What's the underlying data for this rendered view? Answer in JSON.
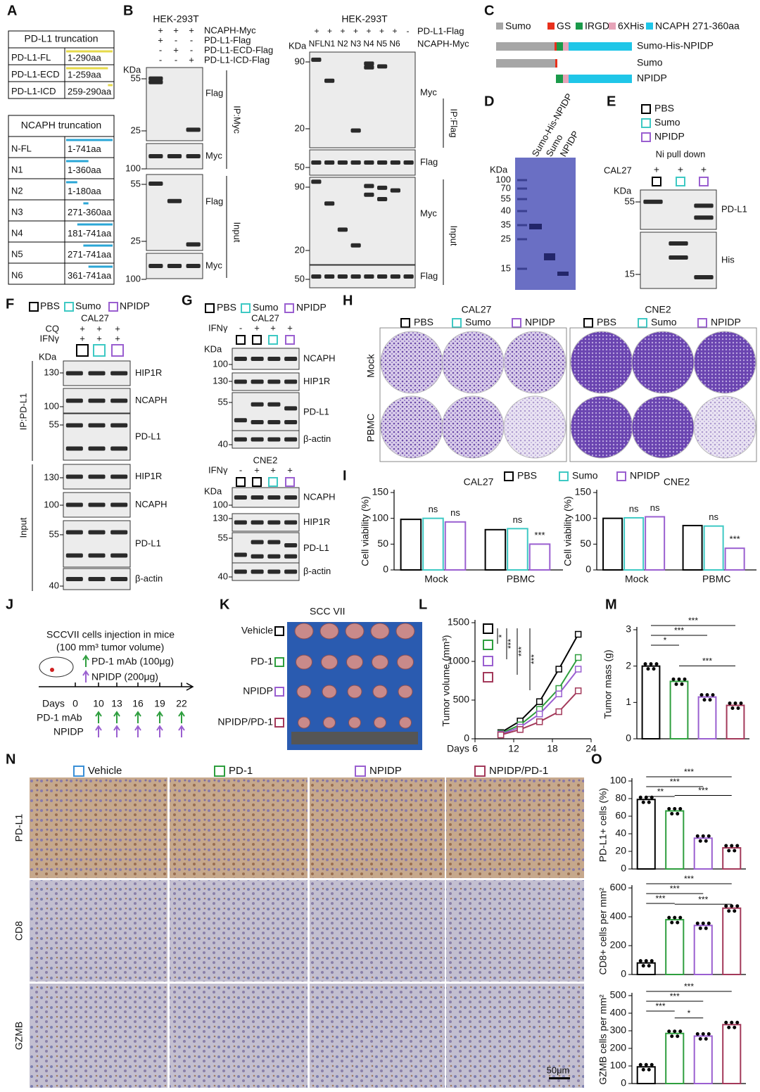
{
  "panels": {
    "A": {
      "label": "A",
      "pdl1": {
        "title": "PD-L1 truncation",
        "rows": [
          [
            "PD-L1-FL",
            "1-290aa"
          ],
          [
            "PD-L1-ECD",
            "1-259aa"
          ],
          [
            "PD-L1-ICD",
            "259-290aa"
          ]
        ]
      },
      "ncaph": {
        "title": "NCAPH truncation",
        "rows": [
          [
            "N-FL",
            "1-741aa"
          ],
          [
            "N1",
            "1-360aa"
          ],
          [
            "N2",
            "1-180aa"
          ],
          [
            "N3",
            "271-360aa"
          ],
          [
            "N4",
            "181-741aa"
          ],
          [
            "N5",
            "271-741aa"
          ],
          [
            "N6",
            "361-741aa"
          ]
        ]
      }
    },
    "B": {
      "label": "B",
      "left": {
        "cell": "HEK-293T",
        "conditions": [
          {
            "name": "NCAPH-Myc",
            "signs": [
              "+",
              "+",
              "+"
            ]
          },
          {
            "name": "PD-L1-Flag",
            "signs": [
              "+",
              "-",
              "-"
            ]
          },
          {
            "name": "PD-L1-ECD-Flag",
            "signs": [
              "-",
              "+",
              "-"
            ]
          },
          {
            "name": "PD-L1-ICD-Flag",
            "signs": [
              "-",
              "-",
              "+"
            ]
          }
        ],
        "kda": "KDa",
        "markers": [
          55,
          25,
          100,
          55,
          25,
          100
        ],
        "blots": [
          "Flag",
          "Myc",
          "Flag",
          "Myc"
        ],
        "groups": [
          "IP:Myc",
          "Input"
        ]
      },
      "right": {
        "cell": "HEK-293T",
        "conditions": [
          {
            "name": "PD-L1-Flag",
            "signs": [
              "+",
              "+",
              "+",
              "+",
              "+",
              "+",
              "+",
              "-"
            ]
          },
          {
            "name": "NCAPH-Myc",
            "signs": [
              "NFL",
              "N1",
              "N2",
              "N3",
              "N4",
              "N5",
              "N6"
            ]
          }
        ],
        "kda": "KDa",
        "markers": [
          90,
          20,
          50,
          90,
          20,
          50
        ],
        "blots": [
          "Myc",
          "Flag",
          "Myc",
          "Flag"
        ],
        "groups": [
          "IP:Flag",
          "Input"
        ]
      }
    },
    "C": {
      "label": "C",
      "legend": [
        {
          "name": "Sumo",
          "color": "#a6a6a6"
        },
        {
          "name": "GS",
          "color": "#e8301c"
        },
        {
          "name": "IRGD",
          "color": "#1a9a4a"
        },
        {
          "name": "6XHis",
          "color": "#e6a3b8"
        },
        {
          "name": "NCAPH 271-360aa",
          "color": "#1fc6e8"
        }
      ],
      "constructs": [
        "Sumo-His-NPIDP",
        "Sumo",
        "NPIDP"
      ]
    },
    "D": {
      "label": "D",
      "kda": "KDa",
      "markers": [
        100,
        70,
        55,
        40,
        35,
        25,
        15
      ],
      "lanes": [
        "Sumo-His-NPIDP",
        "Sumo",
        "NPIDP"
      ]
    },
    "E": {
      "label": "E",
      "legend": [
        {
          "name": "PBS",
          "color": "#000000"
        },
        {
          "name": "Sumo",
          "color": "#3ec9c4"
        },
        {
          "name": "NPIDP",
          "color": "#9a5fd0"
        }
      ],
      "pulldown": "Ni pull down",
      "cell": "CAL27",
      "signs": [
        "+",
        "+",
        "+"
      ],
      "kda": "KDa",
      "markers": [
        55,
        15
      ],
      "blots": [
        "PD-L1",
        "His"
      ]
    },
    "F": {
      "label": "F",
      "legend": [
        {
          "name": "PBS",
          "color": "#000000"
        },
        {
          "name": "Sumo",
          "color": "#3ec9c4"
        },
        {
          "name": "NPIDP",
          "color": "#9a5fd0"
        }
      ],
      "cell": "CAL27",
      "conditions": [
        {
          "name": "CQ",
          "signs": [
            "+",
            "+",
            "+"
          ]
        },
        {
          "name": "IFNγ",
          "signs": [
            "+",
            "+",
            "+"
          ]
        }
      ],
      "kda": "KDa",
      "markers": [
        130,
        100,
        55,
        130,
        100,
        55,
        40
      ],
      "blots": [
        "HIP1R",
        "NCAPH",
        "PD-L1",
        "HIP1R",
        "NCAPH",
        "PD-L1",
        "β-actin"
      ],
      "groups": [
        "IP:PD-L1",
        "Input"
      ]
    },
    "G": {
      "label": "G",
      "legend": [
        {
          "name": "PBS",
          "color": "#000000"
        },
        {
          "name": "Sumo",
          "color": "#3ec9c4"
        },
        {
          "name": "NPIDP",
          "color": "#9a5fd0"
        }
      ],
      "sets": [
        {
          "cell": "CAL27",
          "condition": "IFNγ",
          "signs": [
            "-",
            "+",
            "+",
            "+"
          ],
          "kda": "KDa",
          "markers": [
            100,
            130,
            55,
            40
          ],
          "blots": [
            "NCAPH",
            "HIP1R",
            "PD-L1",
            "β-actin"
          ]
        },
        {
          "cell": "CNE2",
          "condition": "IFNγ",
          "signs": [
            "-",
            "+",
            "+",
            "+"
          ],
          "kda": "KDa",
          "markers": [
            100,
            130,
            55,
            40
          ],
          "blots": [
            "NCAPH",
            "HIP1R",
            "PD-L1",
            "β-actin"
          ]
        }
      ]
    },
    "H": {
      "label": "H",
      "legend": [
        {
          "name": "PBS",
          "color": "#000000"
        },
        {
          "name": "Sumo",
          "color": "#3ec9c4"
        },
        {
          "name": "NPIDP",
          "color": "#9a5fd0"
        }
      ],
      "cells": [
        "CAL27",
        "CNE2"
      ],
      "rows": [
        "Mock",
        "PBMC"
      ]
    },
    "I": {
      "label": "I"
    },
    "J": {
      "label": "J",
      "title": "SCCVII cells injection in mice",
      "volume": "(100 mm³ tumor volume)",
      "pd1": "PD-1 mAb (100μg)",
      "npidp": "NPIDP (200μg)",
      "days_label": "Days",
      "days": [
        0,
        10,
        13,
        16,
        19,
        22
      ],
      "rows": [
        "PD-1 mAb",
        "NPIDP"
      ]
    },
    "K": {
      "label": "K",
      "title": "SCC VII",
      "groups": [
        {
          "name": "Vehicle",
          "color": "#000000"
        },
        {
          "name": "PD-1",
          "color": "#2e9e3e"
        },
        {
          "name": "NPIDP",
          "color": "#9a5fd0"
        },
        {
          "name": "NPIDP/PD-1",
          "color": "#a3395a"
        }
      ]
    },
    "L": {
      "label": "L"
    },
    "M": {
      "label": "M"
    },
    "N": {
      "label": "N",
      "legend": [
        {
          "name": "Vehicle",
          "color": "#3a8fd6"
        },
        {
          "name": "PD-1",
          "color": "#2e9e3e"
        },
        {
          "name": "NPIDP",
          "color": "#9a5fd0"
        },
        {
          "name": "NPIDP/PD-1",
          "color": "#a3395a"
        }
      ],
      "rows": [
        "PD-L1",
        "CD8",
        "GZMB"
      ],
      "scale": "50μm"
    },
    "O": {
      "label": "O"
    }
  },
  "chart_data": [
    {
      "type": "grouped_bar",
      "title": "CAL27",
      "ylabel": "Cell viability (%)",
      "categories": [
        "Mock",
        "PBMC"
      ],
      "ylim": [
        0,
        150
      ],
      "yticks": [
        0,
        50,
        100,
        150
      ],
      "series": [
        {
          "name": "PBS",
          "color": "#000000",
          "values": [
            98,
            78
          ]
        },
        {
          "name": "Sumo",
          "color": "#3ec9c4",
          "values": [
            100,
            80
          ],
          "notes": [
            "ns",
            "ns"
          ]
        },
        {
          "name": "NPIDP",
          "color": "#9a5fd0",
          "values": [
            93,
            50
          ],
          "notes": [
            "ns",
            "***"
          ]
        }
      ]
    },
    {
      "type": "grouped_bar",
      "title": "CNE2",
      "ylabel": "Cell viability (%)",
      "categories": [
        "Mock",
        "PBMC"
      ],
      "ylim": [
        0,
        150
      ],
      "yticks": [
        0,
        50,
        100,
        150
      ],
      "series": [
        {
          "color": "#000000",
          "values": [
            100,
            86
          ]
        },
        {
          "color": "#3ec9c4",
          "values": [
            101,
            85
          ],
          "notes": [
            "ns",
            "ns"
          ]
        },
        {
          "color": "#9a5fd0",
          "values": [
            103,
            42
          ],
          "notes": [
            "ns",
            "***"
          ]
        }
      ]
    },
    {
      "type": "line",
      "xlabel": "Days",
      "ylabel": "Tumor volume (mm³)",
      "x": [
        10,
        13,
        16,
        19,
        22
      ],
      "xlim": [
        6,
        24
      ],
      "xticks": [
        6,
        12,
        18,
        24
      ],
      "ylim": [
        0,
        1500
      ],
      "yticks": [
        0,
        500,
        1000,
        1500
      ],
      "series": [
        {
          "color": "#000000",
          "values": [
            80,
            230,
            480,
            900,
            1350
          ]
        },
        {
          "color": "#2e9e3e",
          "values": [
            70,
            180,
            380,
            650,
            1050
          ]
        },
        {
          "color": "#9a5fd0",
          "values": [
            60,
            150,
            320,
            580,
            900
          ]
        },
        {
          "color": "#a3395a",
          "values": [
            50,
            120,
            220,
            350,
            620
          ]
        }
      ],
      "significance": [
        "*",
        "***",
        "***",
        "***"
      ]
    },
    {
      "type": "bar",
      "ylabel": "Tumor mass (g)",
      "values": [
        2.0,
        1.58,
        1.15,
        0.92
      ],
      "colors": [
        "#000000",
        "#2e9e3e",
        "#9a5fd0",
        "#a3395a"
      ],
      "ylim": [
        0,
        3
      ],
      "yticks": [
        0,
        1,
        2,
        3
      ],
      "significance": [
        "***",
        "***",
        "*",
        "***"
      ]
    },
    {
      "type": "bar",
      "ylabel": "PD-L1+ cells (%)",
      "values": [
        79,
        66,
        35,
        24
      ],
      "colors": [
        "#000000",
        "#2e9e3e",
        "#9a5fd0",
        "#a3395a"
      ],
      "ylim": [
        0,
        100
      ],
      "yticks": [
        0,
        20,
        40,
        60,
        80,
        100
      ],
      "significance": [
        "***",
        "***",
        "**",
        "***"
      ]
    },
    {
      "type": "bar",
      "ylabel": "CD8+ cells per mm²",
      "values": [
        80,
        380,
        340,
        460
      ],
      "colors": [
        "#000000",
        "#2e9e3e",
        "#9a5fd0",
        "#a3395a"
      ],
      "ylim": [
        0,
        600
      ],
      "yticks": [
        0,
        200,
        400,
        600
      ],
      "significance": [
        "***",
        "***",
        "***",
        "***"
      ]
    },
    {
      "type": "bar",
      "ylabel": "GZMB cells per mm²",
      "values": [
        95,
        285,
        270,
        335
      ],
      "colors": [
        "#000000",
        "#2e9e3e",
        "#9a5fd0",
        "#a3395a"
      ],
      "ylim": [
        0,
        500
      ],
      "yticks": [
        0,
        100,
        200,
        300,
        400,
        500
      ],
      "significance": [
        "***",
        "***",
        "***",
        "*"
      ]
    }
  ]
}
